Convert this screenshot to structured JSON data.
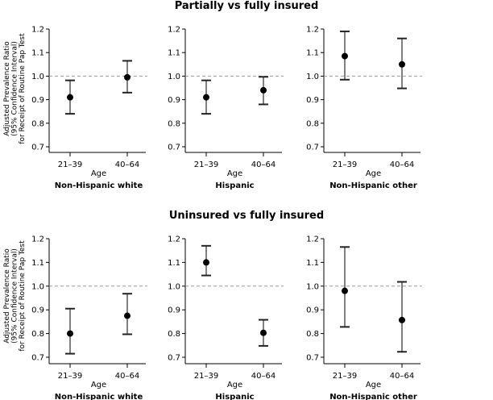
{
  "chart_data": [
    {
      "type": "scatter",
      "row_title": "Partially vs fully insured",
      "ylabel": [
        "Adjusted Prevalence Ratio",
        "(95% Confidence Interval)",
        "for Receipt of Routine Pap Test"
      ],
      "ylim": [
        0.7,
        1.2
      ],
      "yticks": [
        "0.7",
        "0.8",
        "0.9",
        "1.0",
        "1.1",
        "1.2"
      ],
      "reference_line": 1.0,
      "panels": [
        {
          "group": "Non-Hispanic white",
          "xlabel": "Age",
          "categories": [
            "21–39",
            "40–64"
          ],
          "values": [
            0.91,
            0.995
          ],
          "ci_low": [
            0.84,
            0.93
          ],
          "ci_high": [
            0.982,
            1.065
          ]
        },
        {
          "group": "Hispanic",
          "xlabel": "Age",
          "categories": [
            "21–39",
            "40–64"
          ],
          "values": [
            0.91,
            0.94
          ],
          "ci_low": [
            0.84,
            0.88
          ],
          "ci_high": [
            0.982,
            0.997
          ]
        },
        {
          "group": "Non-Hispanic other",
          "xlabel": "Age",
          "categories": [
            "21–39",
            "40–64"
          ],
          "values": [
            1.085,
            1.05
          ],
          "ci_low": [
            0.985,
            0.948
          ],
          "ci_high": [
            1.19,
            1.16
          ]
        }
      ]
    },
    {
      "type": "scatter",
      "row_title": "Uninsured vs fully insured",
      "ylabel": [
        "Adjusted Prevalence Ratio",
        "(95% Confidence Interval)",
        "for Receipt of Routine Pap Test"
      ],
      "ylim": [
        0.7,
        1.2
      ],
      "yticks": [
        "0.7",
        "0.8",
        "0.9",
        "1.0",
        "1.1",
        "1.2"
      ],
      "reference_line": 1.0,
      "panels": [
        {
          "group": "Non-Hispanic white",
          "xlabel": "Age",
          "categories": [
            "21–39",
            "40–64"
          ],
          "values": [
            0.8,
            0.875
          ],
          "ci_low": [
            0.715,
            0.797
          ],
          "ci_high": [
            0.905,
            0.968
          ]
        },
        {
          "group": "Hispanic",
          "xlabel": "Age",
          "categories": [
            "21–39",
            "40–64"
          ],
          "values": [
            1.1,
            0.803
          ],
          "ci_low": [
            1.045,
            0.748
          ],
          "ci_high": [
            1.17,
            0.858
          ]
        },
        {
          "group": "Non-Hispanic other",
          "xlabel": "Age",
          "categories": [
            "21–39",
            "40–64"
          ],
          "values": [
            0.98,
            0.857
          ],
          "ci_low": [
            0.828,
            0.723
          ],
          "ci_high": [
            1.165,
            1.018
          ]
        }
      ]
    }
  ]
}
